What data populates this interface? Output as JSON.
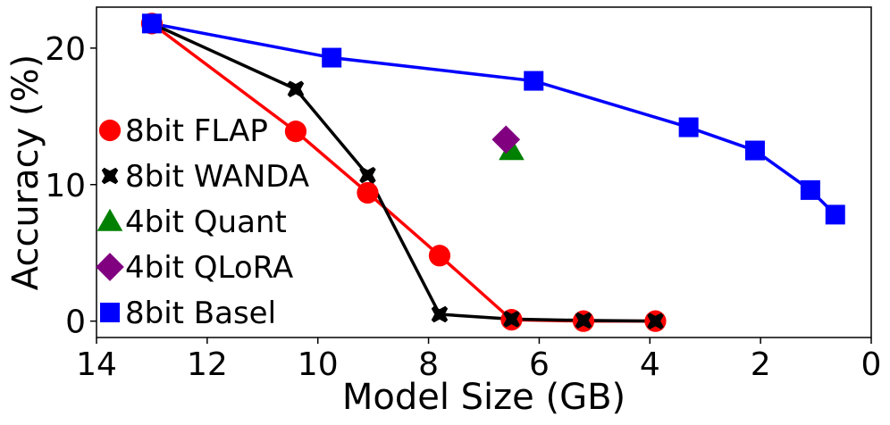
{
  "chart_data": {
    "type": "line",
    "title": "",
    "xlabel": "Model Size (GB)",
    "ylabel": "Accuracy (%)",
    "xlim": [
      14,
      0
    ],
    "ylim": [
      -1.2,
      23
    ],
    "xticks": [
      14,
      12,
      10,
      8,
      6,
      4,
      2,
      0
    ],
    "yticks": [
      0,
      10,
      20
    ],
    "legend_position": "left",
    "series": [
      {
        "name": "8bit FLAP",
        "color": "#ff0000",
        "marker": "circle",
        "line": true,
        "x": [
          13.0,
          10.4,
          9.1,
          7.8,
          6.5,
          5.2,
          3.9
        ],
        "y": [
          21.8,
          13.9,
          9.4,
          4.8,
          0.1,
          0.0,
          0.0
        ]
      },
      {
        "name": "8bit WANDA",
        "color": "#000000",
        "marker": "x",
        "line": true,
        "x": [
          13.0,
          10.4,
          9.1,
          7.8,
          6.5,
          5.2,
          3.9
        ],
        "y": [
          21.8,
          17.0,
          10.7,
          0.5,
          0.15,
          0.05,
          0.0
        ]
      },
      {
        "name": "4bit Quant",
        "color": "#008000",
        "marker": "triangle",
        "line": false,
        "x": [
          6.5
        ],
        "y": [
          12.5
        ]
      },
      {
        "name": "4bit QLoRA",
        "color": "#800080",
        "marker": "diamond",
        "line": false,
        "x": [
          6.6
        ],
        "y": [
          13.3
        ]
      },
      {
        "name": "8bit Basel",
        "color": "#0000ff",
        "marker": "square",
        "line": true,
        "x": [
          13.0,
          9.75,
          6.1,
          3.3,
          2.1,
          1.1,
          0.65
        ],
        "y": [
          21.8,
          19.3,
          17.6,
          14.2,
          12.5,
          9.6,
          7.8
        ]
      }
    ]
  }
}
